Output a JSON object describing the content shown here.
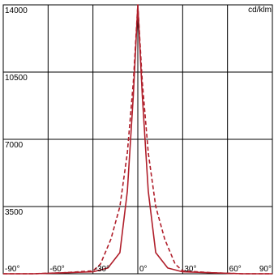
{
  "chart_data": {
    "type": "line",
    "unit_label": "cd/klm",
    "xlim": [
      -90,
      90
    ],
    "ylim": [
      0,
      14000
    ],
    "x_ticks": [
      {
        "value": -90,
        "label": "-90°"
      },
      {
        "value": -60,
        "label": "-60°"
      },
      {
        "value": -30,
        "label": "-30°"
      },
      {
        "value": 0,
        "label": "0°"
      },
      {
        "value": 30,
        "label": "30°"
      },
      {
        "value": 60,
        "label": "60°"
      },
      {
        "value": 90,
        "label": "90°"
      }
    ],
    "y_ticks": [
      {
        "value": 3500,
        "label": "3500"
      },
      {
        "value": 7000,
        "label": "7000"
      },
      {
        "value": 10500,
        "label": "10500"
      },
      {
        "value": 14000,
        "label": "14000"
      }
    ],
    "grid": true,
    "series": [
      {
        "style": "solid",
        "color": "#b01e2a",
        "x": [
          -90,
          -70,
          -50,
          -30,
          -20,
          -12,
          -7,
          -3,
          0,
          3,
          7,
          12,
          20,
          30,
          50,
          70,
          90
        ],
        "y": [
          0,
          0,
          50,
          100,
          300,
          1100,
          4300,
          9300,
          14000,
          9300,
          4300,
          1100,
          300,
          100,
          50,
          0,
          0
        ]
      },
      {
        "style": "dashed",
        "color": "#b01e2a",
        "x": [
          -90,
          -70,
          -50,
          -30,
          -25,
          -18,
          -12,
          -7,
          -3,
          0,
          3,
          7,
          12,
          18,
          25,
          30,
          50,
          70,
          90
        ],
        "y": [
          0,
          0,
          50,
          150,
          500,
          1800,
          3500,
          6300,
          10000,
          14000,
          10000,
          6300,
          3500,
          1800,
          500,
          150,
          50,
          0,
          0
        ]
      }
    ]
  }
}
